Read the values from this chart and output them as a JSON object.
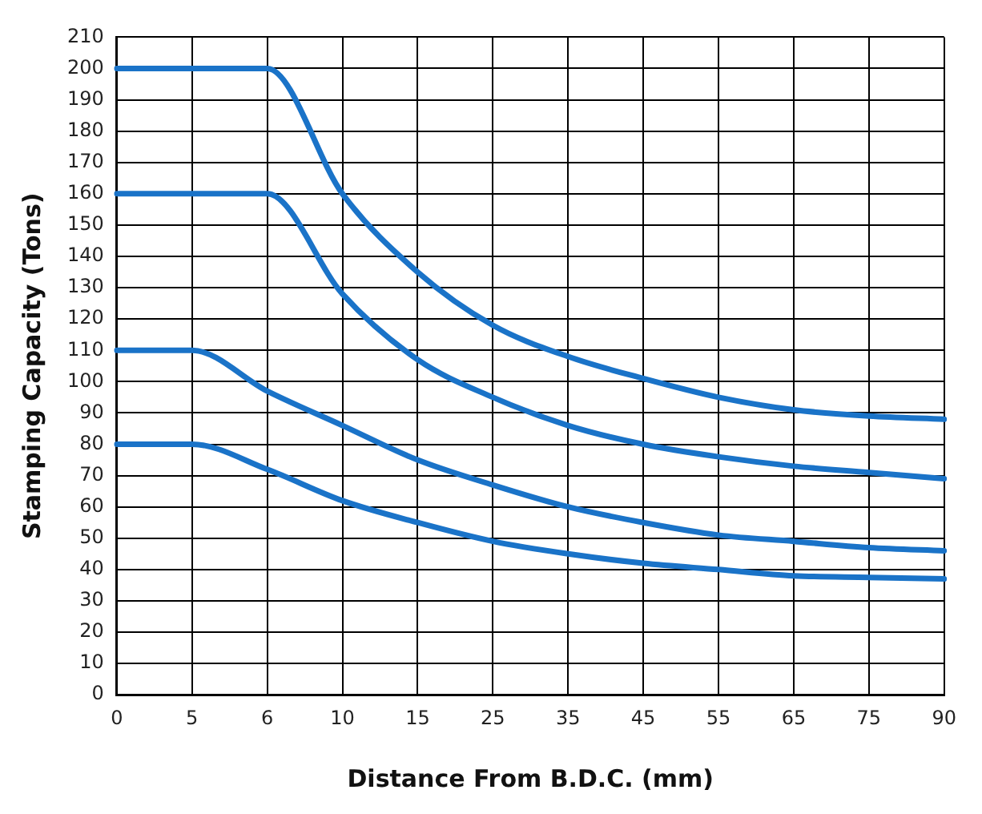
{
  "chart_data": {
    "type": "line",
    "xlabel": "Distance From B.D.C. (mm)",
    "ylabel": "Stamping Capacity (Tons)",
    "categories": [
      "0",
      "5",
      "6",
      "10",
      "15",
      "25",
      "35",
      "45",
      "55",
      "65",
      "75",
      "90"
    ],
    "series": [
      {
        "color": "#1a73c8",
        "values": [
          200,
          200,
          200,
          160,
          135,
          118,
          108,
          101,
          95,
          91,
          89,
          88
        ]
      },
      {
        "color": "#1a73c8",
        "values": [
          160,
          160,
          160,
          128,
          107,
          95,
          86,
          80,
          76,
          73,
          71,
          69
        ]
      },
      {
        "color": "#1a73c8",
        "values": [
          110,
          110,
          97,
          86,
          75,
          67,
          60,
          55,
          51,
          49,
          47,
          46
        ]
      },
      {
        "color": "#1a73c8",
        "values": [
          80,
          80,
          72,
          62,
          55,
          49,
          45,
          42,
          40,
          38,
          37.5,
          37
        ]
      }
    ],
    "ylim": [
      0,
      210
    ],
    "yticks": [
      0,
      10,
      20,
      30,
      40,
      50,
      60,
      70,
      80,
      90,
      100,
      110,
      120,
      130,
      140,
      150,
      160,
      170,
      180,
      190,
      200,
      210
    ],
    "grid": true,
    "legend": false,
    "marker": "none",
    "line_style": "solid"
  }
}
